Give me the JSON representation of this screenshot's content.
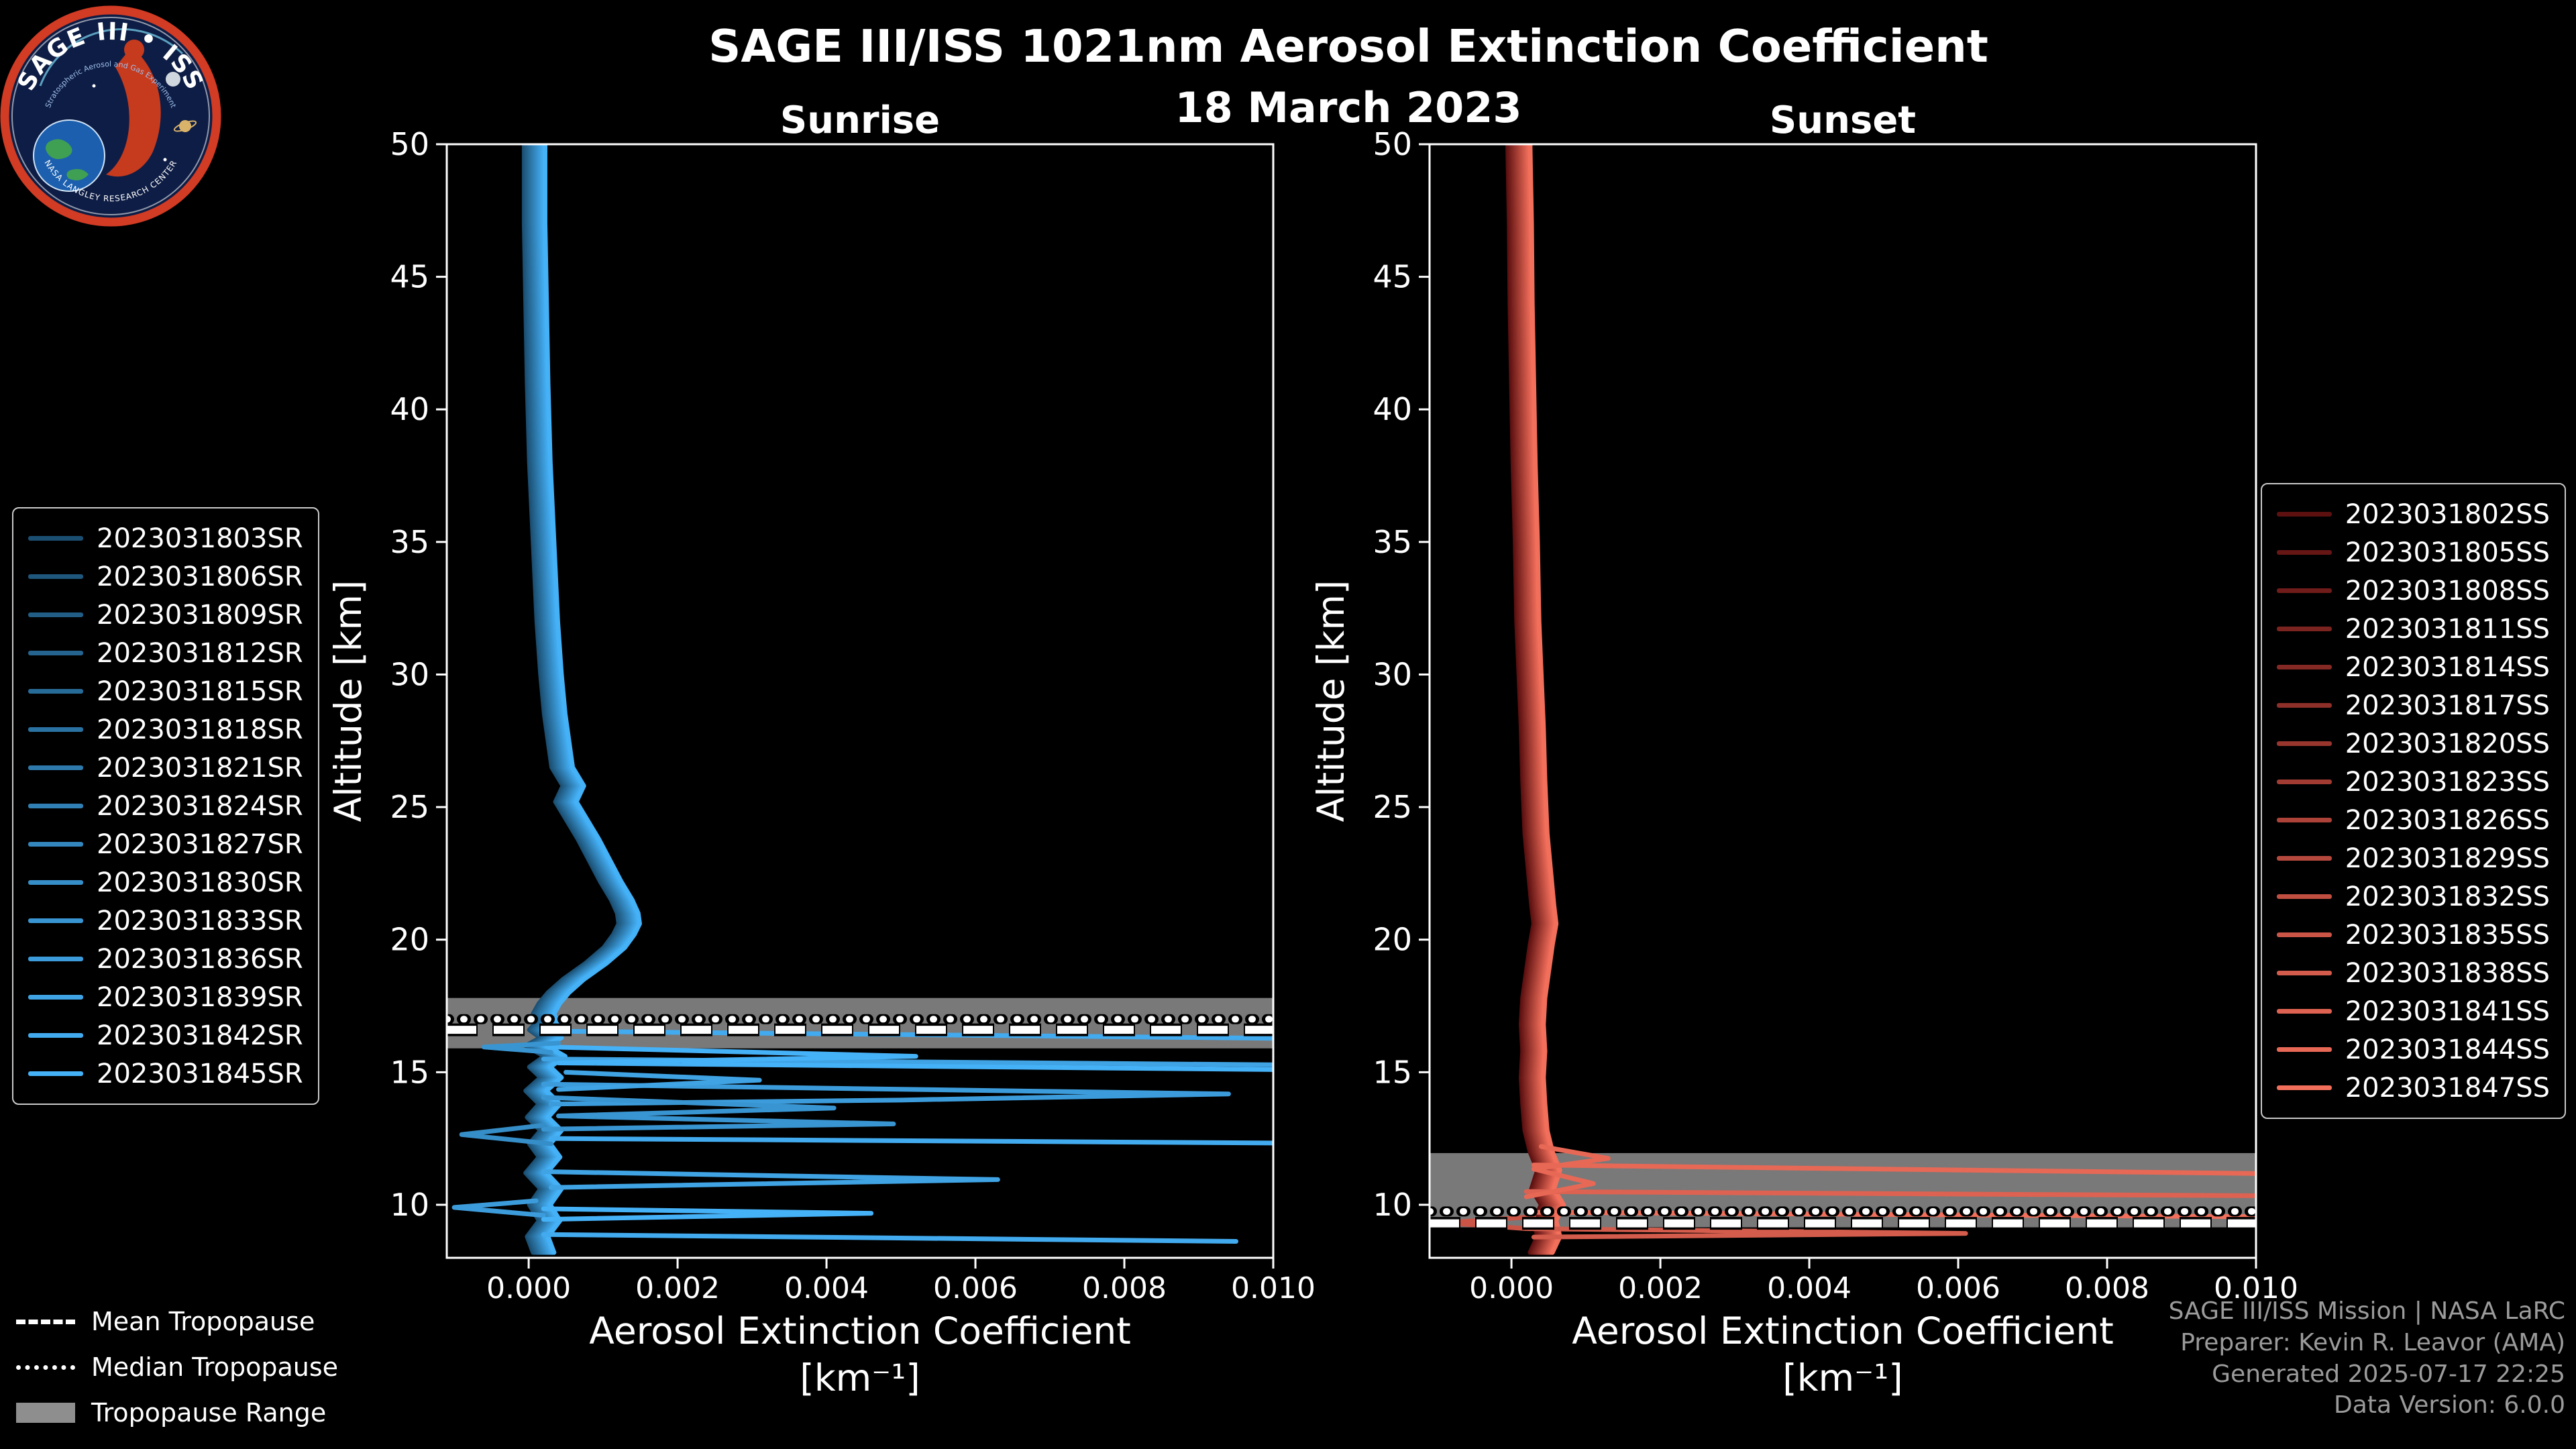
{
  "title": "SAGE III/ISS 1021nm Aerosol Extinction Coefficient",
  "subtitle": "18 March 2023",
  "logo": {
    "primary": "SAGE III • ISS",
    "secondary": "Stratospheric Aerosol and Gas Experiment",
    "banner": "NASA LANGLEY RESEARCH CENTER"
  },
  "tropopause_legend": [
    {
      "label": "Mean Tropopause",
      "style": "dashed"
    },
    {
      "label": "Median Tropopause",
      "style": "dotted"
    },
    {
      "label": "Tropopause Range",
      "style": "band"
    }
  ],
  "credits": [
    "SAGE III/ISS Mission | NASA LaRC",
    "Preparer: Kevin R. Leavor (AMA)",
    "Generated 2025-07-17 22:25",
    "Data Version: 6.0.0"
  ],
  "chart_data": [
    {
      "type": "line",
      "title": "Sunrise",
      "xlabel": "Aerosol Extinction Coefficient",
      "xlabel_units": "[km⁻¹]",
      "ylabel": "Altitude [km]",
      "xlim": [
        -0.0011,
        0.01
      ],
      "ylim": [
        8,
        50
      ],
      "x_ticks": [
        0,
        0.002,
        0.004,
        0.006,
        0.008,
        0.01
      ],
      "x_tick_labels": [
        "0.000",
        "0.002",
        "0.004",
        "0.006",
        "0.008",
        "0.010"
      ],
      "y_ticks": [
        10,
        15,
        20,
        25,
        30,
        35,
        40,
        45,
        50
      ],
      "grid": false,
      "legend_position": "outside-left",
      "accent_color": "#2d8fd0",
      "tropopause": {
        "range": [
          15.9,
          17.8
        ],
        "mean": 16.6,
        "median": 17.0
      },
      "series": [
        {
          "name": "2023031803SR",
          "color": "#1b4f72",
          "offset": -0.00014
        },
        {
          "name": "2023031806SR",
          "color": "#1e567c",
          "offset": -0.00012
        },
        {
          "name": "2023031809SR",
          "color": "#215d85",
          "offset": -0.0001
        },
        {
          "name": "2023031812SR",
          "color": "#24648f",
          "offset": -8e-05
        },
        {
          "name": "2023031815SR",
          "color": "#276b98",
          "offset": -6e-05
        },
        {
          "name": "2023031818SR",
          "color": "#2a72a2",
          "offset": -4e-05
        },
        {
          "name": "2023031821SR",
          "color": "#2d79ab",
          "offset": -2e-05
        },
        {
          "name": "2023031824SR",
          "color": "#3080b5",
          "offset": 0
        },
        {
          "name": "2023031827SR",
          "color": "#3387be",
          "offset": 2e-05
        },
        {
          "name": "2023031830SR",
          "color": "#368ec8",
          "offset": 4e-05
        },
        {
          "name": "2023031833SR",
          "color": "#3995d1",
          "offset": 6e-05
        },
        {
          "name": "2023031836SR",
          "color": "#3c9cdb",
          "offset": 8e-05
        },
        {
          "name": "2023031839SR",
          "color": "#3fa3e4",
          "offset": 0.0001
        },
        {
          "name": "2023031842SR",
          "color": "#42aaee",
          "offset": 0.00012
        },
        {
          "name": "2023031845SR",
          "color": "#45b1f7",
          "offset": 0.00014
        }
      ],
      "base_profile": [
        [
          8e-05,
          50
        ],
        [
          8e-05,
          47
        ],
        [
          0.0001,
          44
        ],
        [
          0.00012,
          41
        ],
        [
          0.00015,
          38
        ],
        [
          0.0002,
          35
        ],
        [
          0.00025,
          32
        ],
        [
          0.0003,
          30
        ],
        [
          0.00035,
          28.5
        ],
        [
          0.0004,
          27.5
        ],
        [
          0.00045,
          26.5
        ],
        [
          0.0006,
          25.8
        ],
        [
          0.0005,
          25.2
        ],
        [
          0.00065,
          24.5
        ],
        [
          0.0008,
          23.8
        ],
        [
          0.00095,
          23
        ],
        [
          0.0011,
          22.2
        ],
        [
          0.00125,
          21.5
        ],
        [
          0.00133,
          21
        ],
        [
          0.00135,
          20.6
        ],
        [
          0.00128,
          20.2
        ],
        [
          0.00115,
          19.7
        ],
        [
          0.0009,
          19.1
        ],
        [
          0.0006,
          18.5
        ],
        [
          0.0004,
          18
        ],
        [
          0.00028,
          17.6
        ],
        [
          0.0002,
          17.2
        ],
        [
          0.00025,
          16.9
        ],
        [
          0.00015,
          16.6
        ],
        [
          0.0003,
          16.3
        ],
        [
          0.0001,
          16
        ],
        [
          0.00035,
          15.6
        ],
        [
          0.00015,
          15.2
        ],
        [
          0.0003,
          14.8
        ],
        [
          0.0001,
          14.3
        ],
        [
          0.00028,
          13.8
        ],
        [
          0.00012,
          13.3
        ],
        [
          0.0003,
          12.8
        ],
        [
          0.00015,
          12.3
        ],
        [
          0.00028,
          11.8
        ],
        [
          0.0001,
          11.2
        ],
        [
          0.0003,
          10.6
        ],
        [
          0.00015,
          10
        ],
        [
          0.00028,
          9.4
        ],
        [
          0.00012,
          8.8
        ],
        [
          0.0002,
          8.2
        ]
      ],
      "extra_segments": [
        {
          "series": 13,
          "points": [
            [
              0.0003,
              16.55
            ],
            [
              0.01,
              16.28
            ]
          ]
        },
        {
          "series": 12,
          "points": [
            [
              0.0002,
              15.5
            ],
            [
              0.01,
              15.28
            ]
          ]
        },
        {
          "series": 14,
          "points": [
            [
              0.0003,
              15.95
            ],
            [
              0.0052,
              15.6
            ],
            [
              0.0004,
              15.35
            ],
            [
              0.01,
              15.1
            ]
          ]
        },
        {
          "series": 11,
          "points": [
            [
              0.0002,
              14.55
            ],
            [
              0.0094,
              14.18
            ],
            [
              0.005,
              13.95
            ],
            [
              0.0003,
              13.8
            ]
          ]
        },
        {
          "series": 10,
          "points": [
            [
              0.0002,
              14.05
            ],
            [
              0.0041,
              13.65
            ],
            [
              0.0004,
              13.35
            ],
            [
              0.0049,
              13.05
            ],
            [
              0.0002,
              12.85
            ]
          ]
        },
        {
          "series": 13,
          "points": [
            [
              0.0003,
              12.5
            ],
            [
              0.01,
              12.33
            ]
          ]
        },
        {
          "series": 9,
          "points": [
            [
              0.0002,
              13.0
            ],
            [
              -0.0009,
              12.65
            ],
            [
              0.0003,
              12.3
            ]
          ]
        },
        {
          "series": 12,
          "points": [
            [
              0.0002,
              11.25
            ],
            [
              0.0063,
              10.95
            ],
            [
              0.0003,
              10.65
            ]
          ]
        },
        {
          "series": 11,
          "points": [
            [
              0.0001,
              10.15
            ],
            [
              -0.001,
              9.9
            ],
            [
              0.0002,
              9.6
            ]
          ]
        },
        {
          "series": 14,
          "points": [
            [
              0.0002,
              9.85
            ],
            [
              0.0046,
              9.68
            ],
            [
              0.0002,
              9.45
            ]
          ]
        },
        {
          "series": 13,
          "points": [
            [
              0.0002,
              8.88
            ],
            [
              0.0095,
              8.62
            ]
          ]
        },
        {
          "series": 10,
          "points": [
            [
              0.0004,
              16.1
            ],
            [
              -0.0006,
              15.95
            ],
            [
              0.0003,
              15.75
            ]
          ]
        },
        {
          "series": 12,
          "points": [
            [
              0.0005,
              15.0
            ],
            [
              0.0031,
              14.7
            ],
            [
              0.0004,
              14.35
            ]
          ]
        }
      ]
    },
    {
      "type": "line",
      "title": "Sunset",
      "xlabel": "Aerosol Extinction Coefficient",
      "xlabel_units": "[km⁻¹]",
      "ylabel": "Altitude [km]",
      "xlim": [
        -0.0011,
        0.01
      ],
      "ylim": [
        8,
        50
      ],
      "x_ticks": [
        0,
        0.002,
        0.004,
        0.006,
        0.008,
        0.01
      ],
      "x_tick_labels": [
        "0.000",
        "0.002",
        "0.004",
        "0.006",
        "0.008",
        "0.010"
      ],
      "y_ticks": [
        10,
        15,
        20,
        25,
        30,
        35,
        40,
        45,
        50
      ],
      "grid": false,
      "legend_position": "outside-right",
      "accent_color": "#e05a46",
      "tropopause": {
        "range": [
          9.15,
          11.95
        ],
        "mean": 9.3,
        "median": 9.75
      },
      "series": [
        {
          "name": "2023031802SS",
          "color": "#5c1010",
          "offset": -0.00015
        },
        {
          "name": "2023031805SS",
          "color": "#661615",
          "offset": -0.00013
        },
        {
          "name": "2023031808SS",
          "color": "#701c1a",
          "offset": -0.00011
        },
        {
          "name": "2023031811SS",
          "color": "#7a231f",
          "offset": -9e-05
        },
        {
          "name": "2023031814SS",
          "color": "#842924",
          "offset": -7e-05
        },
        {
          "name": "2023031817SS",
          "color": "#8e2f29",
          "offset": -5e-05
        },
        {
          "name": "2023031820SS",
          "color": "#98362e",
          "offset": -3e-05
        },
        {
          "name": "2023031823SS",
          "color": "#a23c33",
          "offset": -1e-05
        },
        {
          "name": "2023031826SS",
          "color": "#ac4238",
          "offset": 1e-05
        },
        {
          "name": "2023031829SS",
          "color": "#b6493d",
          "offset": 3e-05
        },
        {
          "name": "2023031832SS",
          "color": "#c04f42",
          "offset": 5e-05
        },
        {
          "name": "2023031835SS",
          "color": "#ca5547",
          "offset": 7e-05
        },
        {
          "name": "2023031838SS",
          "color": "#d45c4c",
          "offset": 9e-05
        },
        {
          "name": "2023031841SS",
          "color": "#de6251",
          "offset": 0.00011
        },
        {
          "name": "2023031844SS",
          "color": "#e86856",
          "offset": 0.00013
        },
        {
          "name": "2023031847SS",
          "color": "#f26f5b",
          "offset": 0.00015
        }
      ],
      "base_profile": [
        [
          0.0001,
          50
        ],
        [
          0.00012,
          47
        ],
        [
          0.00013,
          44
        ],
        [
          0.00015,
          41
        ],
        [
          0.00017,
          38
        ],
        [
          0.0002,
          35
        ],
        [
          0.00022,
          32
        ],
        [
          0.00025,
          30
        ],
        [
          0.00028,
          28
        ],
        [
          0.0003,
          26
        ],
        [
          0.00033,
          24
        ],
        [
          0.00038,
          22.5
        ],
        [
          0.00042,
          21.3
        ],
        [
          0.00045,
          20.6
        ],
        [
          0.0004,
          19.8
        ],
        [
          0.00035,
          18.8
        ],
        [
          0.0003,
          17.8
        ],
        [
          0.00028,
          16.8
        ],
        [
          0.0003,
          15.8
        ],
        [
          0.00028,
          14.8
        ],
        [
          0.0003,
          13.8
        ],
        [
          0.00033,
          12.8
        ],
        [
          0.0004,
          12
        ],
        [
          0.0005,
          11.3
        ],
        [
          0.00042,
          10.6
        ],
        [
          0.00055,
          10
        ],
        [
          0.00045,
          9.4
        ],
        [
          0.0005,
          8.8
        ],
        [
          0.0004,
          8.2
        ]
      ],
      "extra_segments": [
        {
          "series": 14,
          "points": [
            [
              0.0003,
              11.5
            ],
            [
              0.01,
              11.18
            ]
          ]
        },
        {
          "series": 13,
          "points": [
            [
              0.0002,
              10.5
            ],
            [
              0.01,
              10.34
            ]
          ]
        },
        {
          "series": 15,
          "points": [
            [
              0.0002,
              9.72
            ],
            [
              0.01,
              9.55
            ]
          ]
        },
        {
          "series": 12,
          "points": [
            [
              0.0002,
              9.1
            ],
            [
              0.0061,
              8.92
            ],
            [
              0.0003,
              8.78
            ]
          ]
        },
        {
          "series": 11,
          "points": [
            [
              0.0003,
              9.55
            ],
            [
              -0.0009,
              9.32
            ],
            [
              0.0002,
              9.1
            ]
          ]
        },
        {
          "series": 14,
          "points": [
            [
              0.0004,
              12.2
            ],
            [
              0.0013,
              11.75
            ],
            [
              0.0003,
              11.35
            ],
            [
              0.0011,
              10.8
            ],
            [
              0.0002,
              10.3
            ]
          ]
        }
      ]
    }
  ]
}
